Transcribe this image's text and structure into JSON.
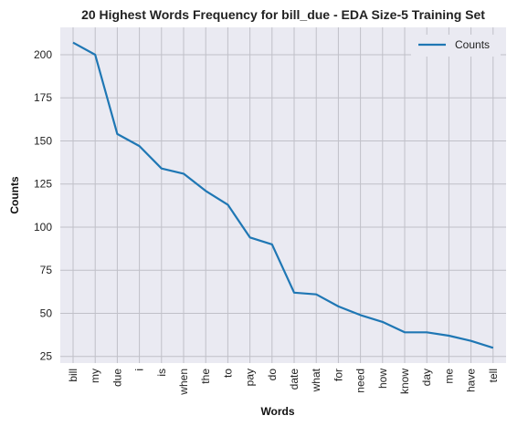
{
  "chart_data": {
    "type": "line",
    "title": "20 Highest Words Frequency for bill_due - EDA Size-5 Training Set",
    "xlabel": "Words",
    "ylabel": "Counts",
    "categories": [
      "bill",
      "my",
      "due",
      "i",
      "is",
      "when",
      "the",
      "to",
      "pay",
      "do",
      "date",
      "what",
      "for",
      "need",
      "how",
      "know",
      "day",
      "me",
      "have",
      "tell"
    ],
    "series": [
      {
        "name": "Counts",
        "values": [
          207,
          200,
          154,
          147,
          134,
          131,
          121,
          113,
          94,
          90,
          62,
          61,
          54,
          49,
          45,
          39,
          39,
          37,
          34,
          30
        ]
      }
    ],
    "yticks": [
      25,
      50,
      75,
      100,
      125,
      150,
      175,
      200
    ],
    "ylim": [
      21.15,
      215.85
    ],
    "grid": true,
    "legend": "top-right",
    "colors": {
      "line": "#1f77b4",
      "plot_bg": "#eaeaf2",
      "grid": "#c0c0c8"
    }
  }
}
